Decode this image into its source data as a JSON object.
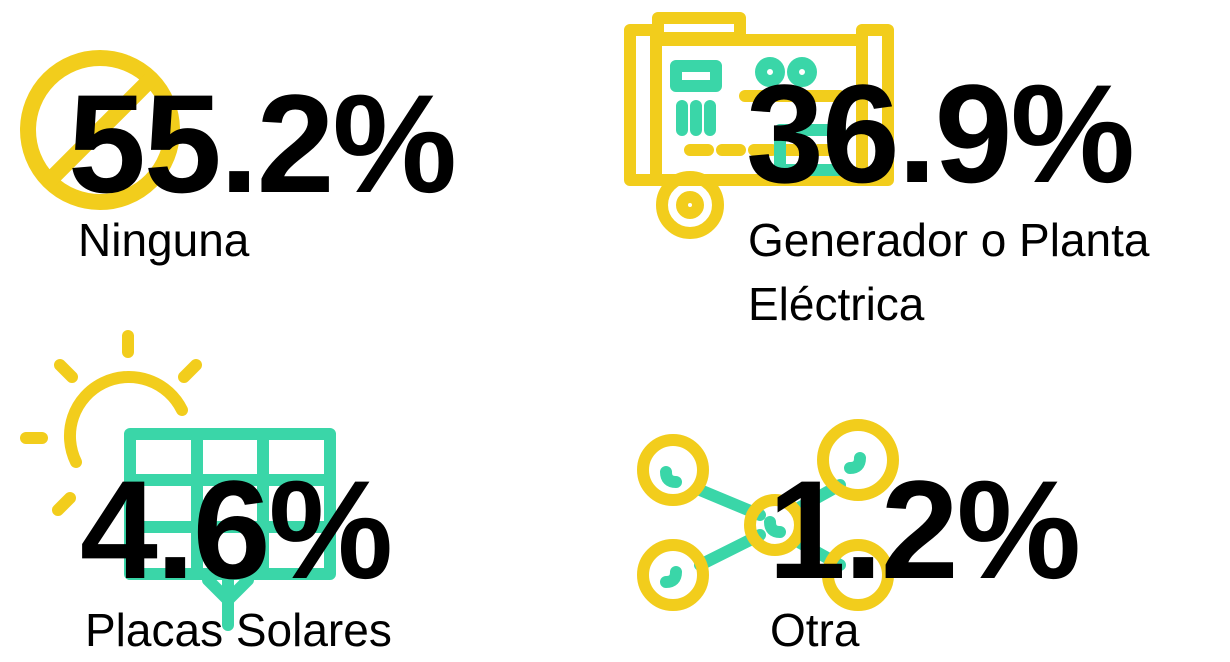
{
  "items": [
    {
      "value": "55.2%",
      "label": "Ninguna"
    },
    {
      "value": "36.9%",
      "label": "Generador o Planta Eléctrica"
    },
    {
      "value": "4.6%",
      "label": "Placas Solares"
    },
    {
      "value": "1.2%",
      "label": "Otra"
    }
  ]
}
